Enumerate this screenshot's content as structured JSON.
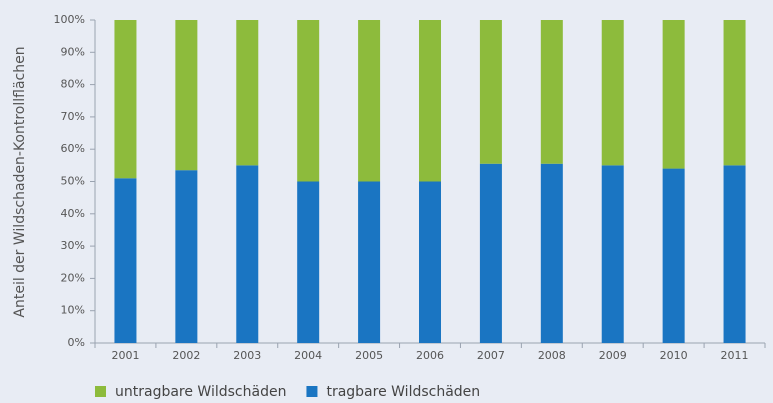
{
  "chart_data": {
    "type": "stacked_bar",
    "y_label": "Anteil der Wildschaden-Kontrollflächen",
    "categories": [
      "2001",
      "2002",
      "2003",
      "2004",
      "2005",
      "2006",
      "2007",
      "2008",
      "2009",
      "2010",
      "2011"
    ],
    "series": [
      {
        "name": "tragbare Wildschäden",
        "color": "#1a75c2",
        "values": [
          51,
          53.5,
          55,
          50,
          50,
          50,
          55.5,
          55.5,
          55,
          54,
          55
        ]
      },
      {
        "name": "untragbare Wildschäden",
        "color": "#8dbb3c",
        "values": [
          49,
          46.5,
          45,
          50,
          50,
          50,
          44.5,
          44.5,
          45,
          46,
          45
        ]
      }
    ],
    "ylim": [
      0,
      100
    ],
    "yticks": [
      {
        "value": 0,
        "label": "0%"
      },
      {
        "value": 10,
        "label": "10%"
      },
      {
        "value": 20,
        "label": "20%"
      },
      {
        "value": 30,
        "label": "30%"
      },
      {
        "value": 40,
        "label": "40%"
      },
      {
        "value": 50,
        "label": "50%"
      },
      {
        "value": 60,
        "label": "60%"
      },
      {
        "value": 70,
        "label": "70%"
      },
      {
        "value": 80,
        "label": "80%"
      },
      {
        "value": 90,
        "label": "90%"
      },
      {
        "value": 100,
        "label": "100%"
      }
    ],
    "grid": false
  }
}
